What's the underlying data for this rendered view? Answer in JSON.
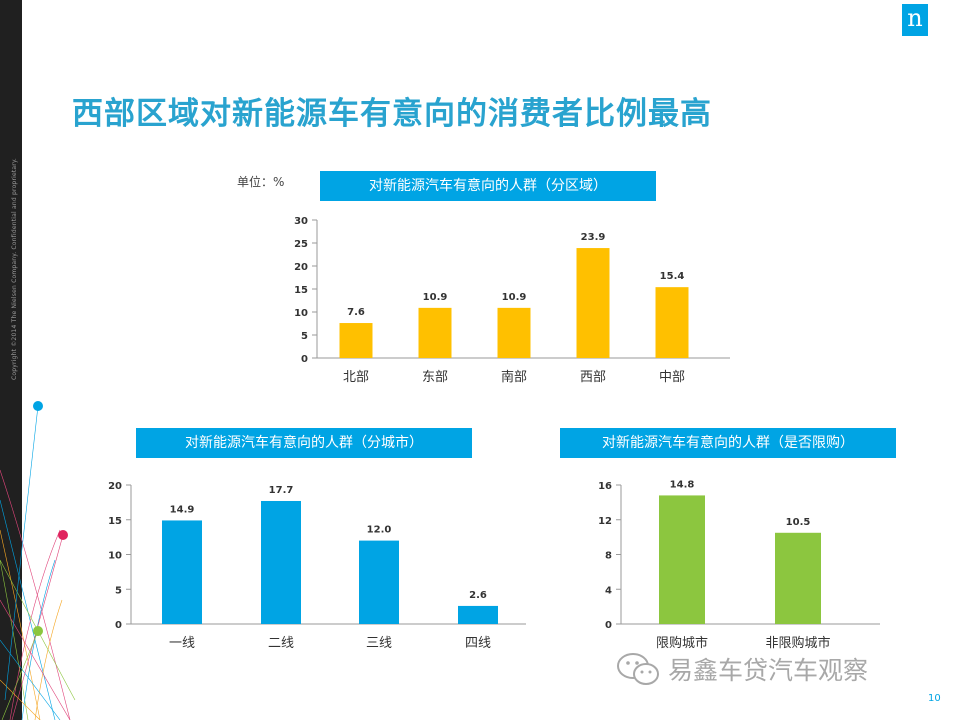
{
  "page": {
    "title": "西部区域对新能源车有意向的消费者比例最高",
    "copyright": "Copyright ©2014 The Nielsen Company. Confidential and proprietary.",
    "logo_letter": "n",
    "page_number": "10",
    "watermark": "易鑫车贷汽车观察",
    "accent_color": "#00a4e4"
  },
  "unit_label": "单位：%",
  "chart_data": [
    {
      "type": "bar",
      "title": "对新能源汽车有意向的人群（分区域）",
      "categories": [
        "北部",
        "东部",
        "南部",
        "西部",
        "中部"
      ],
      "values": [
        7.6,
        10.9,
        10.9,
        23.9,
        15.4
      ],
      "value_labels": [
        "7.6",
        "10.9",
        "10.9",
        "23.9",
        "15.4"
      ],
      "yticks": [
        "0",
        "5",
        "10",
        "15",
        "20",
        "25",
        "30"
      ],
      "ylim": [
        0,
        30
      ],
      "color": "#ffc000",
      "grid": false
    },
    {
      "type": "bar",
      "title": "对新能源汽车有意向的人群（分城市）",
      "categories": [
        "一线",
        "二线",
        "三线",
        "四线"
      ],
      "values": [
        14.9,
        17.7,
        12.0,
        2.6
      ],
      "value_labels": [
        "14.9",
        "17.7",
        "12.0",
        "2.6"
      ],
      "yticks": [
        "0",
        "5",
        "10",
        "15",
        "20"
      ],
      "ylim": [
        0,
        20
      ],
      "color": "#00a4e4",
      "grid": false
    },
    {
      "type": "bar",
      "title": "对新能源汽车有意向的人群（是否限购）",
      "categories": [
        "限购城市",
        "非限购城市"
      ],
      "values": [
        14.8,
        10.5
      ],
      "value_labels": [
        "14.8",
        "10.5"
      ],
      "yticks": [
        "0",
        "4",
        "8",
        "12",
        "16"
      ],
      "ylim": [
        0,
        16
      ],
      "color": "#8cc63f",
      "grid": false
    }
  ]
}
